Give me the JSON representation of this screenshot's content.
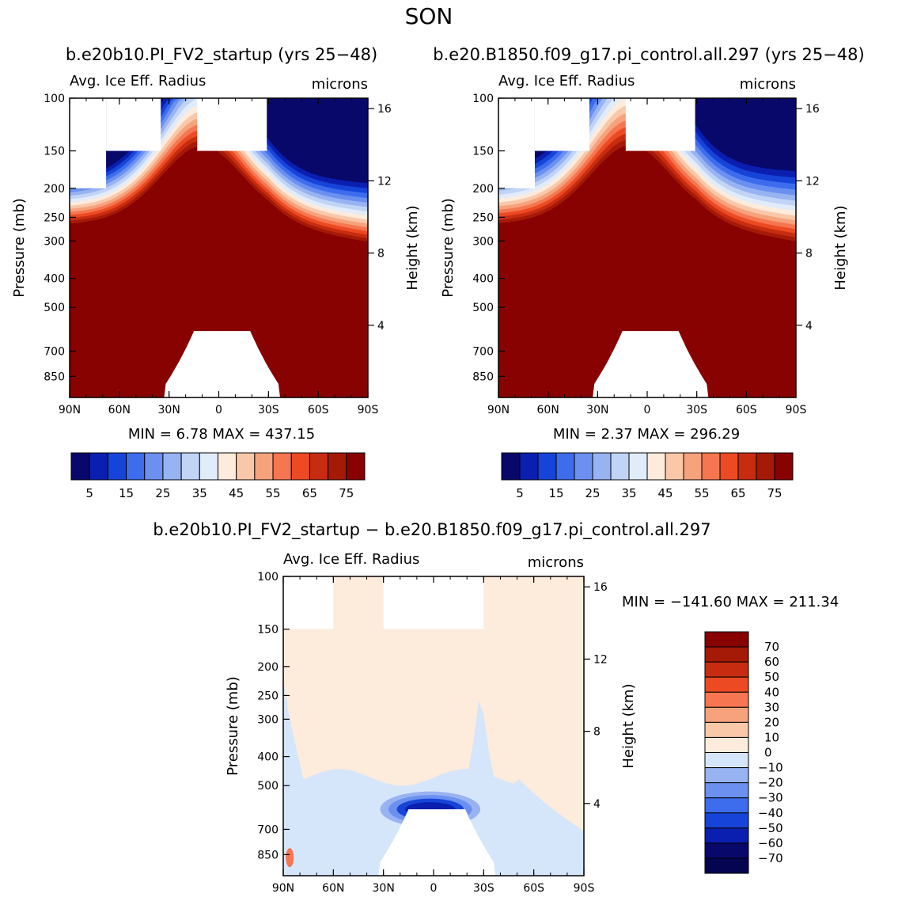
{
  "figure": {
    "season": "SON"
  },
  "chart_data": [
    {
      "type": "heatmap",
      "title": "b.e20b10.PI_FV2_startup (yrs 25-48)",
      "subtitle": "Avg. Ice Eff. Radius",
      "units": "microns",
      "xlabel": "",
      "ylabel": "Pressure (mb)",
      "ylabel_right": "Height (km)",
      "x_ticks": [
        "90N",
        "60N",
        "30N",
        "0",
        "30S",
        "60S",
        "90S"
      ],
      "y_ticks": [
        100,
        150,
        200,
        250,
        300,
        400,
        500,
        700,
        850
      ],
      "y_right_ticks": [
        16,
        12,
        8,
        4
      ],
      "ylim": [
        1000,
        100
      ],
      "min_label": "MIN =",
      "min_value": "6.78",
      "max_label": "MAX =",
      "max_value": "437.15",
      "colorbar": {
        "levels": [
          5,
          10,
          15,
          20,
          25,
          30,
          35,
          40,
          45,
          50,
          55,
          60,
          65,
          70,
          75
        ],
        "labels": [
          "5",
          "15",
          "25",
          "35",
          "45",
          "55",
          "65",
          "75"
        ],
        "colors": [
          "#08086b",
          "#0a1fb0",
          "#1744d8",
          "#3d6ded",
          "#6b90f0",
          "#98b3f2",
          "#c1d4f6",
          "#e1ecfb",
          "#fdebdb",
          "#f8c8a9",
          "#f6a27c",
          "#f57650",
          "#ec4a23",
          "#c72c10",
          "#a41a06",
          "#880202"
        ]
      }
    },
    {
      "type": "heatmap",
      "title": "b.e20.B1850.f09_g17.pi_control.all.297 (yrs 25-48)",
      "subtitle": "Avg. Ice Eff. Radius",
      "units": "microns",
      "xlabel": "",
      "ylabel": "Pressure (mb)",
      "ylabel_right": "Height (km)",
      "x_ticks": [
        "90N",
        "60N",
        "30N",
        "0",
        "30S",
        "60S",
        "90S"
      ],
      "y_ticks": [
        100,
        150,
        200,
        250,
        300,
        400,
        500,
        700,
        850
      ],
      "y_right_ticks": [
        16,
        12,
        8,
        4
      ],
      "ylim": [
        1000,
        100
      ],
      "min_label": "MIN =",
      "min_value": "2.37",
      "max_label": "MAX =",
      "max_value": "296.29",
      "colorbar": {
        "levels": [
          5,
          10,
          15,
          20,
          25,
          30,
          35,
          40,
          45,
          50,
          55,
          60,
          65,
          70,
          75
        ],
        "labels": [
          "5",
          "15",
          "25",
          "35",
          "45",
          "55",
          "65",
          "75"
        ],
        "colors": [
          "#08086b",
          "#0a1fb0",
          "#1744d8",
          "#3d6ded",
          "#6b90f0",
          "#98b3f2",
          "#c1d4f6",
          "#e1ecfb",
          "#fdebdb",
          "#f8c8a9",
          "#f6a27c",
          "#f57650",
          "#ec4a23",
          "#c72c10",
          "#a41a06",
          "#880202"
        ]
      }
    },
    {
      "type": "heatmap",
      "title": "b.e20b10.PI_FV2_startup - b.e20.B1850.f09_g17.pi_control.all.297",
      "subtitle": "Avg. Ice Eff. Radius",
      "units": "microns",
      "xlabel": "",
      "ylabel": "Pressure (mb)",
      "ylabel_right": "Height (km)",
      "x_ticks": [
        "90N",
        "60N",
        "30N",
        "0",
        "30S",
        "60S",
        "90S"
      ],
      "y_ticks": [
        100,
        150,
        200,
        250,
        300,
        400,
        500,
        700,
        850
      ],
      "y_right_ticks": [
        16,
        12,
        8,
        4
      ],
      "ylim": [
        1000,
        100
      ],
      "min_label": "MIN =",
      "min_value": "-141.60",
      "max_label": "MAX =",
      "max_value": "211.34",
      "colorbar": {
        "levels": [
          70,
          60,
          50,
          40,
          30,
          20,
          10,
          0,
          -10,
          -20,
          -30,
          -40,
          -50,
          -60,
          -70
        ],
        "labels": [
          "70",
          "60",
          "50",
          "40",
          "30",
          "20",
          "10",
          "0",
          "−10",
          "−20",
          "−30",
          "−40",
          "−50",
          "−60",
          "−70"
        ],
        "colors": [
          "#880202",
          "#a41a06",
          "#c72c10",
          "#ec4a23",
          "#f57650",
          "#f6a27c",
          "#f8c8a9",
          "#fdebdb",
          "#d6e6fa",
          "#98b3f2",
          "#6b90f0",
          "#3d6ded",
          "#1744d8",
          "#0a1fb0",
          "#08086b",
          "#040450"
        ]
      }
    }
  ]
}
